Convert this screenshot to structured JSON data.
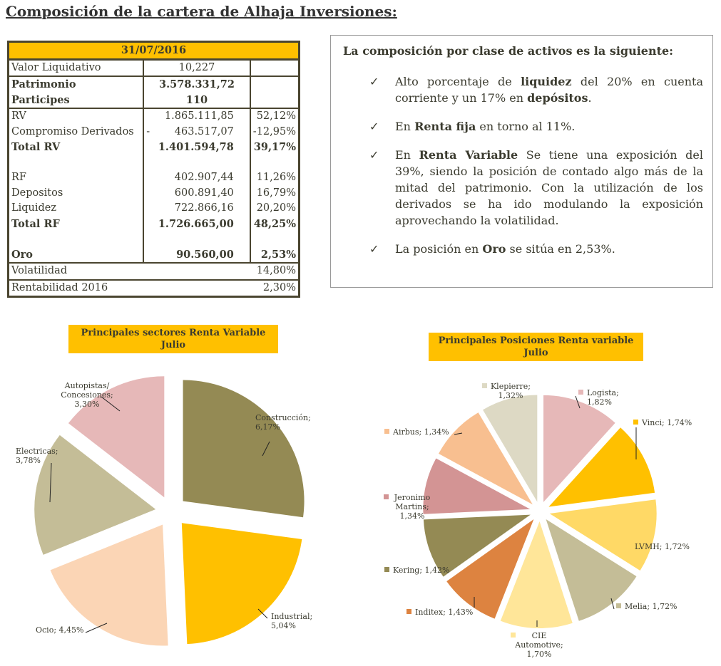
{
  "page_title": "Composición de la cartera de Alhaja Inversiones:",
  "table": {
    "date": "31/07/2016",
    "rows": [
      {
        "label": "Valor Liquidativo",
        "value": "10,227",
        "pct": ""
      },
      {
        "label": "Patrimonio",
        "value": "3.578.331,72",
        "pct": ""
      },
      {
        "label": "Participes",
        "value": "110",
        "pct": ""
      },
      {
        "label": "RV",
        "value": "1.865.111,85",
        "pct": "52,12%"
      },
      {
        "label": "Compromiso Derivados",
        "value": "463.517,07",
        "prefix": "-",
        "pct": "-12,95%"
      },
      {
        "label": "Total RV",
        "value": "1.401.594,78",
        "pct": "39,17%"
      },
      {
        "label": "RF",
        "value": "402.907,44",
        "pct": "11,26%"
      },
      {
        "label": "Depositos",
        "value": "600.891,40",
        "pct": "16,79%"
      },
      {
        "label": "Liquidez",
        "value": "722.866,16",
        "pct": "20,20%"
      },
      {
        "label": "Total RF",
        "value": "1.726.665,00",
        "pct": "48,25%"
      },
      {
        "label": "Oro",
        "value": "90.560,00",
        "pct": "2,53%"
      },
      {
        "label": "Volatilidad",
        "value": "",
        "pct": "14,80%"
      },
      {
        "label": "Rentabilidad 2016",
        "value": "",
        "pct": "2,30%"
      }
    ]
  },
  "summary": {
    "heading": "La composición por clase de activos es la siguiente:",
    "check_icon": "✓",
    "bullets": [
      [
        "Alto porcentaje de ",
        "liquidez",
        " del 20% en cuenta corriente y un 17% en ",
        "depósitos",
        "."
      ],
      [
        "En ",
        "Renta fija",
        " en torno al 11%.",
        "",
        ""
      ],
      [
        "En ",
        "Renta Variable",
        " Se tiene una exposición del 39%, siendo la posición de contado algo más de la mitad del patrimonio. Con la utilización de los derivados se ha ido modulando la exposición aprovechando la volatilidad.",
        "",
        ""
      ],
      [
        "La posición en ",
        "Oro",
        " se sitúa en 2,53%.",
        "",
        ""
      ]
    ]
  },
  "chart_data": [
    {
      "type": "pie",
      "title": "Principales sectores Renta Variable Julio",
      "title_lines": [
        "Principales sectores Renta Variable",
        "Julio"
      ],
      "slices": [
        {
          "label": "Construcción",
          "value": 6.17,
          "text": "6,17%",
          "color": "#948a54"
        },
        {
          "label": "Industrial",
          "value": 5.04,
          "text": "5,04%",
          "color": "#ffc000"
        },
        {
          "label": "Ocio",
          "value": 4.45,
          "text": "4,45%",
          "color": "#fbd5b5"
        },
        {
          "label": "Electricas",
          "value": 3.78,
          "text": "3,78%",
          "color": "#c4bd97"
        },
        {
          "label": "Autopistas/ Concesiones",
          "value": 3.3,
          "text": "3,30%",
          "color": "#e6b8b8"
        }
      ]
    },
    {
      "type": "pie",
      "title": "Principales Posiciones Renta variable Julio",
      "title_lines": [
        "Principales Posiciones Renta variable",
        "Julio"
      ],
      "slices": [
        {
          "label": "Logista",
          "value": 1.82,
          "text": "1,82%",
          "color": "#e6b8b8"
        },
        {
          "label": "Vinci",
          "value": 1.74,
          "text": "1,74%",
          "color": "#ffc000"
        },
        {
          "label": "LVMH",
          "value": 1.72,
          "text": "1,72%",
          "color": "#ffd966"
        },
        {
          "label": "Melia",
          "value": 1.72,
          "text": "1,72%",
          "color": "#c4bd97"
        },
        {
          "label": "CIE Automotive",
          "value": 1.7,
          "text": "1,70%",
          "color": "#ffe699"
        },
        {
          "label": "Inditex",
          "value": 1.43,
          "text": "1,43%",
          "color": "#dd8340"
        },
        {
          "label": "Kering",
          "value": 1.42,
          "text": "1,42%",
          "color": "#948a54"
        },
        {
          "label": "Jeronimo Martins",
          "value": 1.34,
          "text": "1,34%",
          "color": "#d39494"
        },
        {
          "label": "Airbus",
          "value": 1.34,
          "text": "1,34%",
          "color": "#f8bf90"
        },
        {
          "label": "Klepierre",
          "value": 1.32,
          "text": "1,32%",
          "color": "#ddd9c4"
        }
      ]
    }
  ]
}
